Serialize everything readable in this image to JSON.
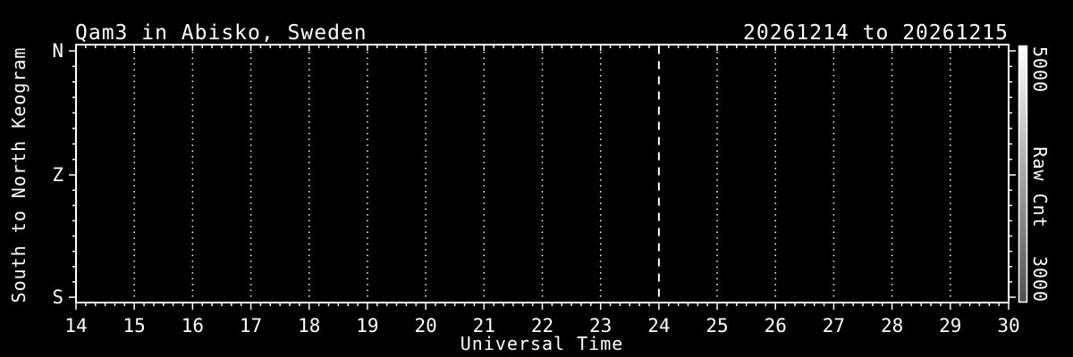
{
  "chart_data": {
    "type": "heatmap",
    "title": "Qam3 in Abisko, Sweden",
    "subtitle": "20261214 to 20261215",
    "xlabel": "Universal Time",
    "ylabel": "South to North Keogram",
    "xlim": [
      14,
      30
    ],
    "x_major_ticks": [
      14,
      15,
      16,
      17,
      18,
      19,
      20,
      21,
      22,
      23,
      24,
      25,
      26,
      27,
      28,
      29,
      30
    ],
    "x_minor_divisions": 6,
    "y_tick_labels": [
      "N",
      "Z",
      "S"
    ],
    "y_minor_per_interval": 7,
    "grid": {
      "hourly_lines": [
        15,
        16,
        17,
        18,
        19,
        20,
        21,
        22,
        23,
        25,
        26,
        27,
        28,
        29
      ],
      "style": "dotted",
      "midnight_line": {
        "x": 24,
        "style": "dashed"
      }
    },
    "values_note": "keogram image area is uniformly black: no raw counts above the color-scale minimum during 14:00-30:00 UT",
    "colorbar": {
      "label": "Raw Cnt",
      "max": "5000",
      "min": "3000",
      "gradient_top": "#ffffff",
      "gradient_bottom": "#4f4f4f",
      "position": "right"
    },
    "colors": {
      "background": "#000000",
      "axes": "#ffffff",
      "text": "#ffffff"
    }
  }
}
